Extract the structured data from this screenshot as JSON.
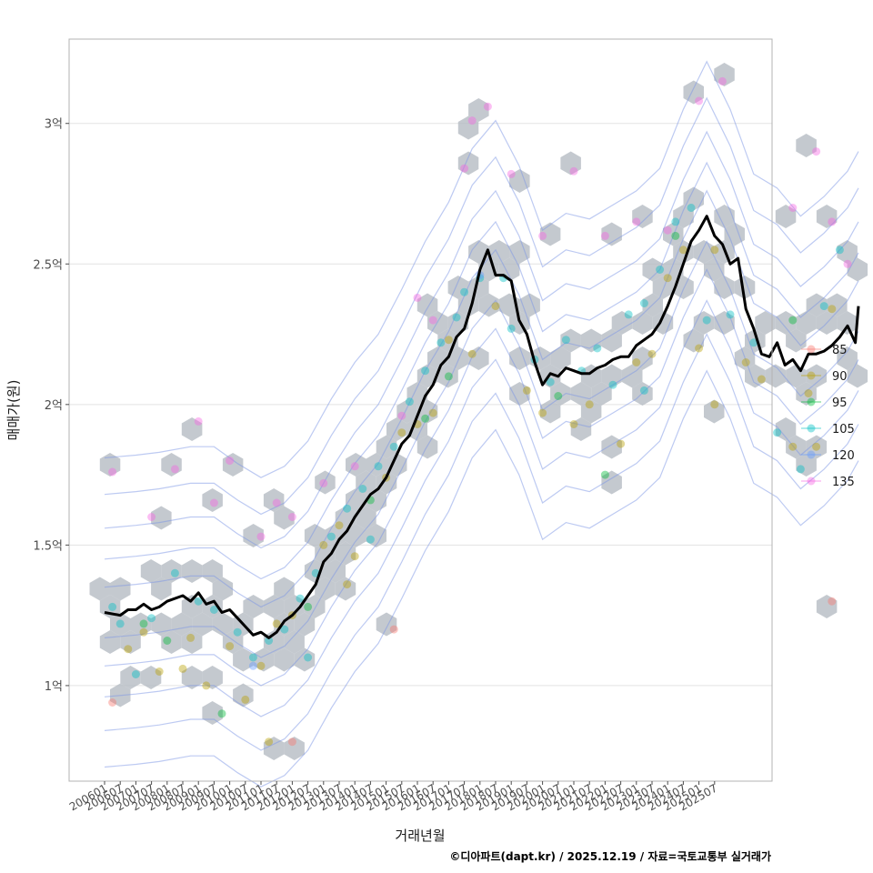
{
  "chart_data": {
    "type": "scatter",
    "xlabel": "거래년월",
    "ylabel": "매매가(원)",
    "ylim": [
      0.66,
      3.3
    ],
    "y_ticks": [
      {
        "value": 1.0,
        "label": "1억"
      },
      {
        "value": 1.5,
        "label": "1.5억"
      },
      {
        "value": 2.0,
        "label": "2억"
      },
      {
        "value": 2.5,
        "label": "2.5억"
      },
      {
        "value": 3.0,
        "label": "3억"
      }
    ],
    "x_ticks": [
      "200601",
      "200607",
      "200701",
      "200707",
      "200801",
      "200807",
      "200901",
      "200907",
      "201001",
      "201007",
      "201101",
      "201107",
      "201201",
      "201207",
      "201301",
      "201307",
      "201401",
      "201407",
      "201501",
      "201507",
      "201601",
      "201607",
      "201701",
      "201707",
      "201801",
      "201807",
      "201901",
      "201907",
      "202001",
      "202007",
      "202101",
      "202107",
      "202201",
      "202207",
      "202301",
      "202307",
      "202401",
      "202407",
      "202501",
      "202507"
    ],
    "legend": [
      {
        "label": "85",
        "color": "#F8766D"
      },
      {
        "label": "90",
        "color": "#B79F00"
      },
      {
        "label": "95",
        "color": "#00BA38"
      },
      {
        "label": "105",
        "color": "#00BFC4"
      },
      {
        "label": "120",
        "color": "#619CFF"
      },
      {
        "label": "135",
        "color": "#F564E3"
      }
    ],
    "trend_line": [
      [
        0,
        1.26
      ],
      [
        1,
        1.25
      ],
      [
        1.5,
        1.27
      ],
      [
        2,
        1.27
      ],
      [
        2.5,
        1.29
      ],
      [
        3,
        1.27
      ],
      [
        3.5,
        1.28
      ],
      [
        4,
        1.3
      ],
      [
        5,
        1.32
      ],
      [
        5.5,
        1.3
      ],
      [
        6,
        1.33
      ],
      [
        6.5,
        1.29
      ],
      [
        7,
        1.3
      ],
      [
        7.5,
        1.26
      ],
      [
        8,
        1.27
      ],
      [
        8.5,
        1.24
      ],
      [
        9,
        1.21
      ],
      [
        9.5,
        1.18
      ],
      [
        10,
        1.19
      ],
      [
        10.5,
        1.17
      ],
      [
        11,
        1.19
      ],
      [
        11.5,
        1.23
      ],
      [
        12,
        1.25
      ],
      [
        12.5,
        1.28
      ],
      [
        13,
        1.32
      ],
      [
        13.5,
        1.36
      ],
      [
        14,
        1.44
      ],
      [
        14.5,
        1.47
      ],
      [
        15,
        1.52
      ],
      [
        15.5,
        1.55
      ],
      [
        16,
        1.6
      ],
      [
        16.5,
        1.64
      ],
      [
        17,
        1.68
      ],
      [
        17.5,
        1.7
      ],
      [
        18,
        1.74
      ],
      [
        18.5,
        1.8
      ],
      [
        19,
        1.86
      ],
      [
        19.5,
        1.89
      ],
      [
        20,
        1.96
      ],
      [
        20.5,
        2.03
      ],
      [
        21,
        2.07
      ],
      [
        21.5,
        2.14
      ],
      [
        22,
        2.17
      ],
      [
        22.5,
        2.24
      ],
      [
        23,
        2.27
      ],
      [
        23.5,
        2.36
      ],
      [
        24,
        2.48
      ],
      [
        24.5,
        2.55
      ],
      [
        25,
        2.46
      ],
      [
        25.5,
        2.46
      ],
      [
        26,
        2.44
      ],
      [
        26.5,
        2.3
      ],
      [
        27,
        2.25
      ],
      [
        27.5,
        2.15
      ],
      [
        28,
        2.07
      ],
      [
        28.5,
        2.11
      ],
      [
        29,
        2.1
      ],
      [
        29.5,
        2.13
      ],
      [
        30,
        2.12
      ],
      [
        30.5,
        2.11
      ],
      [
        31,
        2.11
      ],
      [
        31.5,
        2.13
      ],
      [
        32,
        2.14
      ],
      [
        32.5,
        2.16
      ],
      [
        33,
        2.17
      ],
      [
        33.5,
        2.17
      ],
      [
        34,
        2.21
      ],
      [
        34.5,
        2.23
      ],
      [
        35,
        2.25
      ],
      [
        35.5,
        2.29
      ],
      [
        36,
        2.35
      ],
      [
        36.5,
        2.42
      ],
      [
        37,
        2.5
      ],
      [
        37.5,
        2.58
      ],
      [
        38,
        2.62
      ],
      [
        38.5,
        2.67
      ],
      [
        39,
        2.6
      ],
      [
        39.5,
        2.57
      ],
      [
        40,
        2.5
      ],
      [
        40.5,
        2.52
      ],
      [
        41,
        2.34
      ],
      [
        41.5,
        2.27
      ],
      [
        42,
        2.18
      ],
      [
        42.5,
        2.17
      ],
      [
        43,
        2.22
      ],
      [
        43.5,
        2.14
      ],
      [
        44,
        2.16
      ],
      [
        44.5,
        2.12
      ],
      [
        45,
        2.18
      ],
      [
        45.5,
        2.18
      ],
      [
        46,
        2.19
      ],
      [
        46.5,
        2.21
      ],
      [
        47,
        2.24
      ],
      [
        47.5,
        2.28
      ],
      [
        48,
        2.22
      ],
      [
        48.2,
        2.35
      ]
    ],
    "scatter": [
      {
        "g": 3,
        "x": 0.5,
        "y": 1.28
      },
      {
        "g": 3,
        "x": 1,
        "y": 1.22
      },
      {
        "g": 1,
        "x": 1.5,
        "y": 1.13
      },
      {
        "g": 3,
        "x": 2,
        "y": 1.04
      },
      {
        "g": 1,
        "x": 2.5,
        "y": 1.19
      },
      {
        "g": 3,
        "x": 3,
        "y": 1.24
      },
      {
        "g": 1,
        "x": 3.5,
        "y": 1.05
      },
      {
        "g": 2,
        "x": 4,
        "y": 1.16
      },
      {
        "g": 3,
        "x": 4.5,
        "y": 1.4
      },
      {
        "g": 1,
        "x": 5,
        "y": 1.06
      },
      {
        "g": 1,
        "x": 5.5,
        "y": 1.17
      },
      {
        "g": 3,
        "x": 6,
        "y": 1.3
      },
      {
        "g": 1,
        "x": 6.5,
        "y": 1.0
      },
      {
        "g": 3,
        "x": 7,
        "y": 1.27
      },
      {
        "g": 2,
        "x": 7.5,
        "y": 0.9
      },
      {
        "g": 1,
        "x": 8,
        "y": 1.14
      },
      {
        "g": 3,
        "x": 8.5,
        "y": 1.19
      },
      {
        "g": 1,
        "x": 9,
        "y": 0.95
      },
      {
        "g": 3,
        "x": 9.5,
        "y": 1.1
      },
      {
        "g": 1,
        "x": 10,
        "y": 1.07
      },
      {
        "g": 3,
        "x": 10.5,
        "y": 1.16
      },
      {
        "g": 1,
        "x": 11,
        "y": 1.22
      },
      {
        "g": 3,
        "x": 11.5,
        "y": 1.2
      },
      {
        "g": 1,
        "x": 12,
        "y": 1.25
      },
      {
        "g": 3,
        "x": 12.5,
        "y": 1.31
      },
      {
        "g": 2,
        "x": 13,
        "y": 1.28
      },
      {
        "g": 3,
        "x": 13.5,
        "y": 1.4
      },
      {
        "g": 1,
        "x": 14,
        "y": 1.5
      },
      {
        "g": 3,
        "x": 14.5,
        "y": 1.53
      },
      {
        "g": 1,
        "x": 15,
        "y": 1.57
      },
      {
        "g": 3,
        "x": 15.5,
        "y": 1.63
      },
      {
        "g": 1,
        "x": 16,
        "y": 1.46
      },
      {
        "g": 3,
        "x": 16.5,
        "y": 1.7
      },
      {
        "g": 2,
        "x": 17,
        "y": 1.66
      },
      {
        "g": 3,
        "x": 17.5,
        "y": 1.78
      },
      {
        "g": 1,
        "x": 18,
        "y": 1.74
      },
      {
        "g": 3,
        "x": 18.5,
        "y": 1.85
      },
      {
        "g": 1,
        "x": 19,
        "y": 1.9
      },
      {
        "g": 3,
        "x": 19.5,
        "y": 2.01
      },
      {
        "g": 1,
        "x": 20,
        "y": 1.93
      },
      {
        "g": 3,
        "x": 20.5,
        "y": 2.12
      },
      {
        "g": 1,
        "x": 21,
        "y": 1.97
      },
      {
        "g": 3,
        "x": 21.5,
        "y": 2.22
      },
      {
        "g": 2,
        "x": 22,
        "y": 2.1
      },
      {
        "g": 3,
        "x": 22.5,
        "y": 2.31
      },
      {
        "g": 3,
        "x": 23,
        "y": 2.4
      },
      {
        "g": 1,
        "x": 23.5,
        "y": 2.18
      },
      {
        "g": 3,
        "x": 24,
        "y": 2.45
      },
      {
        "g": 1,
        "x": 25,
        "y": 2.35
      },
      {
        "g": 3,
        "x": 26,
        "y": 2.27
      },
      {
        "g": 1,
        "x": 27,
        "y": 2.05
      },
      {
        "g": 3,
        "x": 27.5,
        "y": 2.16
      },
      {
        "g": 1,
        "x": 28,
        "y": 1.97
      },
      {
        "g": 3,
        "x": 28.5,
        "y": 2.08
      },
      {
        "g": 2,
        "x": 29,
        "y": 2.03
      },
      {
        "g": 3,
        "x": 29.5,
        "y": 2.23
      },
      {
        "g": 1,
        "x": 30,
        "y": 1.93
      },
      {
        "g": 3,
        "x": 30.5,
        "y": 2.12
      },
      {
        "g": 1,
        "x": 31,
        "y": 2.0
      },
      {
        "g": 3,
        "x": 31.5,
        "y": 2.2
      },
      {
        "g": 2,
        "x": 32,
        "y": 1.75
      },
      {
        "g": 3,
        "x": 32.5,
        "y": 2.07
      },
      {
        "g": 1,
        "x": 33,
        "y": 1.86
      },
      {
        "g": 3,
        "x": 33.5,
        "y": 2.32
      },
      {
        "g": 1,
        "x": 34,
        "y": 2.15
      },
      {
        "g": 3,
        "x": 34.5,
        "y": 2.36
      },
      {
        "g": 1,
        "x": 35,
        "y": 2.18
      },
      {
        "g": 3,
        "x": 35.5,
        "y": 2.48
      },
      {
        "g": 1,
        "x": 36,
        "y": 2.45
      },
      {
        "g": 3,
        "x": 36.5,
        "y": 2.65
      },
      {
        "g": 1,
        "x": 37,
        "y": 2.55
      },
      {
        "g": 3,
        "x": 37.5,
        "y": 2.7
      },
      {
        "g": 1,
        "x": 38,
        "y": 2.2
      },
      {
        "g": 3,
        "x": 38.5,
        "y": 2.3
      },
      {
        "g": 1,
        "x": 39,
        "y": 2.55
      },
      {
        "g": 3,
        "x": 40,
        "y": 2.32
      },
      {
        "g": 1,
        "x": 41,
        "y": 2.15
      },
      {
        "g": 3,
        "x": 41.5,
        "y": 2.22
      },
      {
        "g": 1,
        "x": 42,
        "y": 2.09
      },
      {
        "g": 3,
        "x": 43,
        "y": 1.9
      },
      {
        "g": 1,
        "x": 44,
        "y": 1.85
      },
      {
        "g": 3,
        "x": 44.5,
        "y": 1.77
      },
      {
        "g": 1,
        "x": 45,
        "y": 2.04
      },
      {
        "g": 3,
        "x": 46,
        "y": 2.35
      },
      {
        "g": 1,
        "x": 46.5,
        "y": 2.34
      },
      {
        "g": 5,
        "x": 0.5,
        "y": 1.76
      },
      {
        "g": 5,
        "x": 3,
        "y": 1.6
      },
      {
        "g": 5,
        "x": 4.5,
        "y": 1.77
      },
      {
        "g": 5,
        "x": 6,
        "y": 1.94
      },
      {
        "g": 5,
        "x": 7,
        "y": 1.65
      },
      {
        "g": 5,
        "x": 8,
        "y": 1.8
      },
      {
        "g": 5,
        "x": 10,
        "y": 1.53
      },
      {
        "g": 5,
        "x": 11,
        "y": 1.65
      },
      {
        "g": 5,
        "x": 12,
        "y": 1.6
      },
      {
        "g": 5,
        "x": 14,
        "y": 1.72
      },
      {
        "g": 5,
        "x": 16,
        "y": 1.78
      },
      {
        "g": 5,
        "x": 19,
        "y": 1.96
      },
      {
        "g": 5,
        "x": 20,
        "y": 2.38
      },
      {
        "g": 5,
        "x": 21,
        "y": 2.3
      },
      {
        "g": 5,
        "x": 23,
        "y": 2.84
      },
      {
        "g": 5,
        "x": 23.5,
        "y": 3.01
      },
      {
        "g": 5,
        "x": 24.5,
        "y": 3.06
      },
      {
        "g": 5,
        "x": 26,
        "y": 2.82
      },
      {
        "g": 5,
        "x": 28,
        "y": 2.6
      },
      {
        "g": 5,
        "x": 30,
        "y": 2.83
      },
      {
        "g": 5,
        "x": 32,
        "y": 2.6
      },
      {
        "g": 5,
        "x": 34,
        "y": 2.65
      },
      {
        "g": 5,
        "x": 36,
        "y": 2.62
      },
      {
        "g": 5,
        "x": 38,
        "y": 3.08
      },
      {
        "g": 5,
        "x": 39.5,
        "y": 3.15
      },
      {
        "g": 5,
        "x": 44,
        "y": 2.7
      },
      {
        "g": 5,
        "x": 45.5,
        "y": 2.9
      },
      {
        "g": 5,
        "x": 46.5,
        "y": 2.65
      },
      {
        "g": 5,
        "x": 47.5,
        "y": 2.5
      },
      {
        "g": 0,
        "x": 0.5,
        "y": 0.94
      },
      {
        "g": 0,
        "x": 12,
        "y": 0.8
      },
      {
        "g": 0,
        "x": 18.5,
        "y": 1.2
      },
      {
        "g": 0,
        "x": 46.5,
        "y": 1.3
      },
      {
        "g": 4,
        "x": 9.5,
        "y": 1.07
      },
      {
        "g": 4,
        "x": 24,
        "y": 2.46
      },
      {
        "g": 2,
        "x": 2.5,
        "y": 1.22
      },
      {
        "g": 2,
        "x": 20.5,
        "y": 1.95
      },
      {
        "g": 2,
        "x": 36.5,
        "y": 2.6
      },
      {
        "g": 2,
        "x": 44,
        "y": 2.3
      },
      {
        "g": 1,
        "x": 10.5,
        "y": 0.8
      },
      {
        "g": 1,
        "x": 15.5,
        "y": 1.36
      },
      {
        "g": 1,
        "x": 22,
        "y": 2.23
      },
      {
        "g": 1,
        "x": 39,
        "y": 2.0
      },
      {
        "g": 1,
        "x": 45.5,
        "y": 1.85
      },
      {
        "g": 3,
        "x": 13,
        "y": 1.1
      },
      {
        "g": 3,
        "x": 17,
        "y": 1.52
      },
      {
        "g": 3,
        "x": 25.5,
        "y": 2.45
      },
      {
        "g": 3,
        "x": 34.5,
        "y": 2.05
      },
      {
        "g": 3,
        "x": 47,
        "y": 2.55
      }
    ]
  },
  "footer": {
    "credit": "©디아파트(dapt.kr) / 2025.12.19 / 자료=국토교통부 실거래가"
  }
}
